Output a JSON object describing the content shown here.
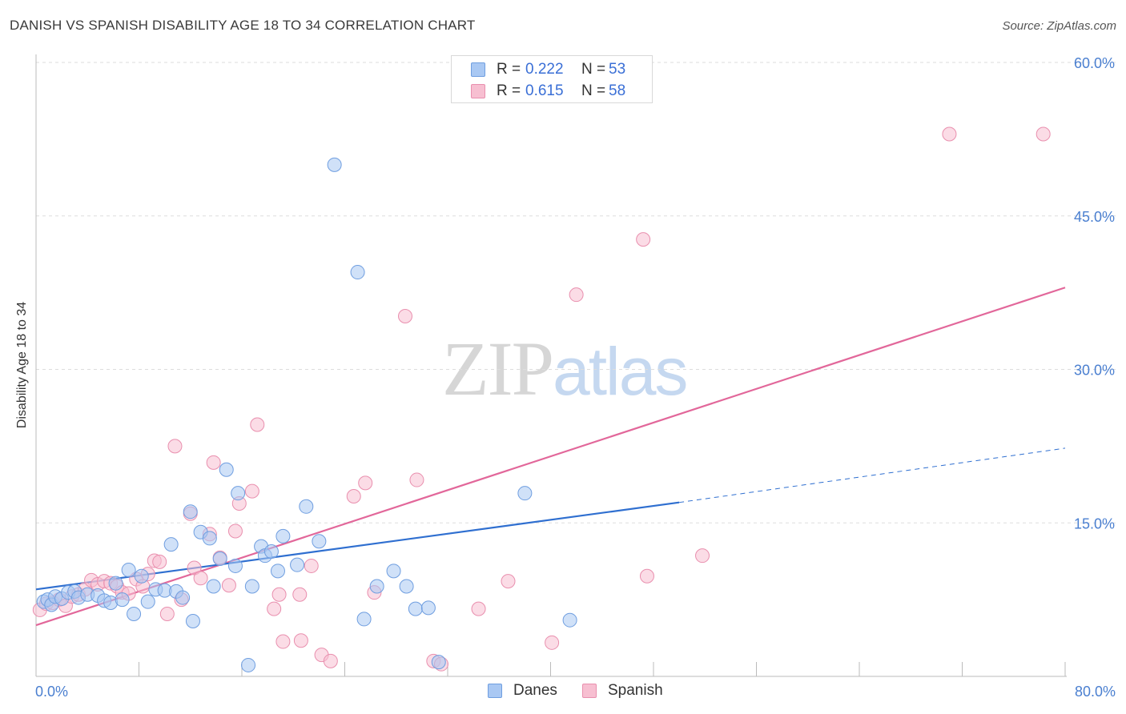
{
  "title": "DANISH VS SPANISH DISABILITY AGE 18 TO 34 CORRELATION CHART",
  "source": "Source: ZipAtlas.com",
  "watermark": {
    "zip": "ZIP",
    "atlas": "atlas"
  },
  "legend": {
    "danes": {
      "r_label": "R =",
      "r_value": "0.222",
      "n_label": "N =",
      "n_value": "53"
    },
    "spanish": {
      "r_label": "R =",
      "r_value": "0.615",
      "n_label": "N =",
      "n_value": "58"
    }
  },
  "bottom_legend": {
    "danes": "Danes",
    "spanish": "Spanish"
  },
  "colors": {
    "danes_fill": "#a9c8f3",
    "danes_stroke": "#6f9ee0",
    "danes_line": "#2f6fd0",
    "spanish_fill": "#f7bfd1",
    "spanish_stroke": "#e98fae",
    "spanish_line": "#e2679a",
    "tick_text": "#4a7fd0",
    "grid": "#dddddd"
  },
  "chart_data": {
    "type": "scatter",
    "title": "DANISH VS SPANISH DISABILITY AGE 18 TO 34 CORRELATION CHART",
    "xlabel": "",
    "ylabel": "Disability Age 18 to 34",
    "xlim": [
      0,
      80
    ],
    "ylim": [
      0,
      60
    ],
    "x_tick_labels": [
      "0.0%",
      "80.0%"
    ],
    "y_ticks": [
      15,
      30,
      45,
      60
    ],
    "y_tick_labels": [
      "15.0%",
      "30.0%",
      "45.0%",
      "60.0%"
    ],
    "grid": "horizontal dashed",
    "series": [
      {
        "name": "Danes",
        "trend": {
          "x0": 0,
          "y0": 8.5,
          "x1": 50,
          "y1": 17.0,
          "dashed_to_x": 80,
          "dashed_to_y": 22.3
        },
        "points": [
          [
            0.6,
            7.3
          ],
          [
            0.9,
            7.5
          ],
          [
            1.2,
            7.0
          ],
          [
            1.5,
            7.8
          ],
          [
            2.0,
            7.6
          ],
          [
            2.5,
            8.2
          ],
          [
            3.0,
            8.3
          ],
          [
            3.3,
            7.7
          ],
          [
            4.0,
            8.0
          ],
          [
            4.8,
            7.9
          ],
          [
            5.3,
            7.4
          ],
          [
            5.8,
            7.2
          ],
          [
            6.2,
            9.1
          ],
          [
            6.7,
            7.5
          ],
          [
            7.2,
            10.4
          ],
          [
            7.6,
            6.1
          ],
          [
            8.2,
            9.8
          ],
          [
            8.7,
            7.3
          ],
          [
            9.3,
            8.5
          ],
          [
            10.0,
            8.4
          ],
          [
            10.5,
            12.9
          ],
          [
            10.9,
            8.3
          ],
          [
            11.4,
            7.7
          ],
          [
            12.2,
            5.4
          ],
          [
            12.0,
            16.1
          ],
          [
            12.8,
            14.1
          ],
          [
            13.5,
            13.5
          ],
          [
            13.8,
            8.8
          ],
          [
            14.3,
            11.5
          ],
          [
            14.8,
            20.2
          ],
          [
            15.5,
            10.8
          ],
          [
            15.7,
            17.9
          ],
          [
            16.5,
            1.1
          ],
          [
            16.8,
            8.8
          ],
          [
            17.5,
            12.7
          ],
          [
            17.8,
            11.8
          ],
          [
            18.3,
            12.2
          ],
          [
            18.8,
            10.3
          ],
          [
            19.2,
            13.7
          ],
          [
            20.3,
            10.9
          ],
          [
            21.0,
            16.6
          ],
          [
            22.0,
            13.2
          ],
          [
            23.2,
            50.0
          ],
          [
            25.0,
            39.5
          ],
          [
            25.5,
            5.6
          ],
          [
            26.5,
            8.8
          ],
          [
            27.8,
            10.3
          ],
          [
            28.8,
            8.8
          ],
          [
            29.5,
            6.6
          ],
          [
            30.5,
            6.7
          ],
          [
            31.3,
            1.4
          ],
          [
            38.0,
            17.9
          ],
          [
            41.5,
            5.5
          ]
        ]
      },
      {
        "name": "Spanish",
        "trend": {
          "x0": 0,
          "y0": 5.0,
          "x1": 80,
          "y1": 38.0
        },
        "points": [
          [
            0.3,
            6.5
          ],
          [
            0.8,
            7.1
          ],
          [
            1.3,
            7.2
          ],
          [
            1.8,
            7.5
          ],
          [
            2.3,
            6.9
          ],
          [
            2.8,
            7.8
          ],
          [
            3.3,
            8.0
          ],
          [
            3.8,
            8.5
          ],
          [
            4.3,
            9.4
          ],
          [
            4.8,
            9.0
          ],
          [
            5.3,
            9.3
          ],
          [
            5.8,
            9.1
          ],
          [
            6.3,
            8.8
          ],
          [
            6.7,
            8.2
          ],
          [
            7.2,
            8.1
          ],
          [
            7.8,
            9.5
          ],
          [
            8.3,
            8.8
          ],
          [
            8.7,
            10.0
          ],
          [
            9.2,
            11.3
          ],
          [
            9.6,
            11.2
          ],
          [
            10.2,
            6.1
          ],
          [
            10.8,
            22.5
          ],
          [
            11.3,
            7.5
          ],
          [
            12.0,
            15.9
          ],
          [
            12.3,
            10.6
          ],
          [
            12.8,
            9.6
          ],
          [
            13.5,
            13.9
          ],
          [
            13.8,
            20.9
          ],
          [
            14.3,
            11.6
          ],
          [
            15.0,
            8.9
          ],
          [
            15.5,
            14.2
          ],
          [
            15.8,
            16.9
          ],
          [
            16.8,
            18.1
          ],
          [
            17.2,
            24.6
          ],
          [
            18.5,
            6.6
          ],
          [
            18.9,
            8.0
          ],
          [
            19.2,
            3.4
          ],
          [
            20.5,
            8.0
          ],
          [
            20.6,
            3.5
          ],
          [
            21.4,
            10.8
          ],
          [
            22.2,
            2.1
          ],
          [
            22.9,
            1.5
          ],
          [
            24.7,
            17.6
          ],
          [
            25.6,
            18.9
          ],
          [
            26.3,
            8.2
          ],
          [
            28.7,
            35.2
          ],
          [
            29.6,
            19.2
          ],
          [
            30.9,
            1.5
          ],
          [
            31.5,
            1.2
          ],
          [
            34.4,
            6.6
          ],
          [
            36.7,
            9.3
          ],
          [
            40.1,
            3.3
          ],
          [
            42.0,
            37.3
          ],
          [
            47.2,
            42.7
          ],
          [
            47.5,
            9.8
          ],
          [
            51.8,
            11.8
          ],
          [
            71.0,
            53.0
          ],
          [
            78.3,
            53.0
          ]
        ]
      }
    ]
  }
}
